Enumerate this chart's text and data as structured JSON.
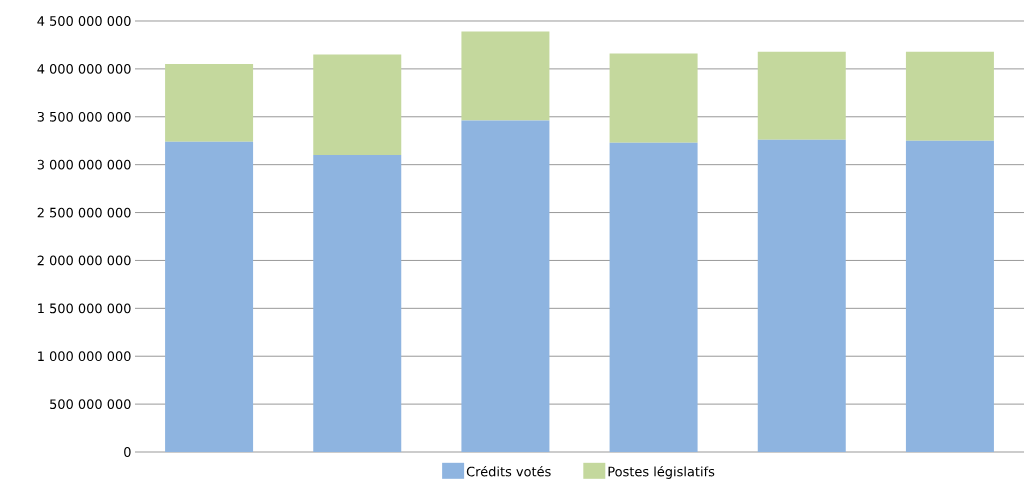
{
  "chart_data": {
    "type": "bar",
    "stacked": true,
    "categories": [
      null,
      null,
      null,
      null,
      null,
      null
    ],
    "series": [
      {
        "name": "Crédits votés",
        "color": "#8eb4e0",
        "values": [
          3240000000,
          3100000000,
          3460000000,
          3230000000,
          3260000000,
          3250000000
        ]
      },
      {
        "name": "Postes législatifs",
        "color": "#c4d89d",
        "values": [
          810000000,
          1050000000,
          930000000,
          930000000,
          920000000,
          930000000
        ]
      }
    ],
    "ylim": [
      0,
      4500000000
    ],
    "yticks": [
      {
        "value": 0,
        "label": "0"
      },
      {
        "value": 500000000,
        "label": "500 000 000"
      },
      {
        "value": 1000000000,
        "label": "1 000 000 000"
      },
      {
        "value": 1500000000,
        "label": "1 500 000 000"
      },
      {
        "value": 2000000000,
        "label": "2 000 000 000"
      },
      {
        "value": 2500000000,
        "label": "2 500 000 000"
      },
      {
        "value": 3000000000,
        "label": "3 000 000 000"
      },
      {
        "value": 3500000000,
        "label": "3 500 000 000"
      },
      {
        "value": 4000000000,
        "label": "4 000 000 000"
      },
      {
        "value": 4500000000,
        "label": "4 500 000 000"
      }
    ],
    "grid": "y",
    "legend": "bottom"
  }
}
